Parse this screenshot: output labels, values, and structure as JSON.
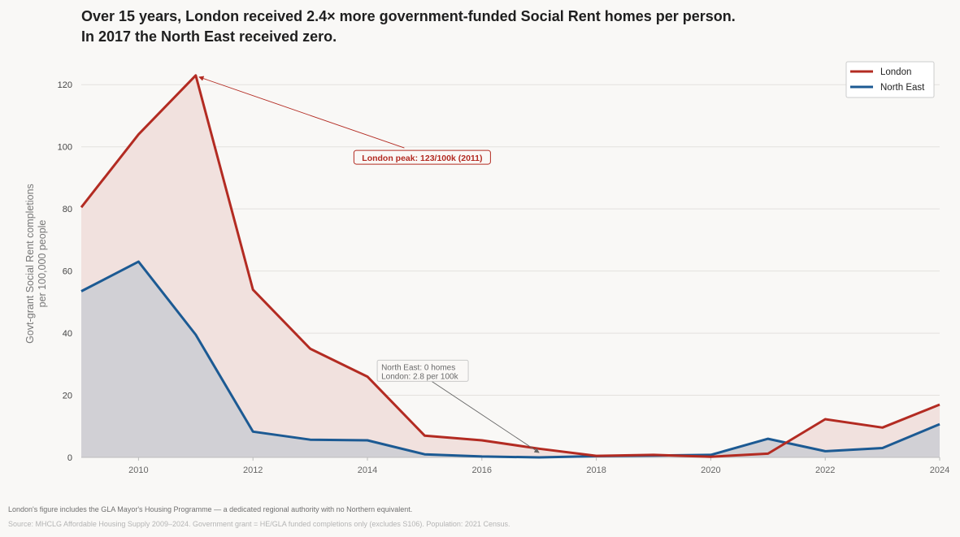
{
  "title": {
    "line1": "Over 15 years, London received 2.4× more government-funded Social Rent homes per person.",
    "line2": "In 2017 the North East received zero."
  },
  "footnote": "London's figure includes the GLA Mayor's Housing Programme — a dedicated regional authority with no Northern equivalent.",
  "source": "Source: MHCLG Affordable Housing Supply 2009–2024. Government grant = HE/GLA funded completions only (excludes S106). Population: 2021 Census.",
  "colors": {
    "london": "#b32b22",
    "north_east": "#1c5a93",
    "london_fill": "#f1e1de",
    "north_east_fill": "#cfcfd4",
    "grid": "#e3e1de",
    "axis_text": "#444444",
    "ylabel_text": "#777777"
  },
  "chart_data": {
    "type": "area",
    "title": "Over 15 years, London received 2.4× more government-funded Social Rent homes per person.",
    "ylabel": "Govt-grant Social Rent completions per 100,000 people",
    "ylabel_lines": [
      "Govt-grant Social Rent completions",
      "per 100,000 people"
    ],
    "xlabel": "",
    "xlim": [
      2009,
      2024
    ],
    "ylim": [
      0,
      130
    ],
    "x_ticks": [
      2010,
      2012,
      2014,
      2016,
      2018,
      2020,
      2022,
      2024
    ],
    "y_ticks": [
      0,
      20,
      40,
      60,
      80,
      100,
      120
    ],
    "grid": "horizontal",
    "legend_position": "top-right",
    "x": [
      2009,
      2010,
      2011,
      2012,
      2013,
      2014,
      2015,
      2016,
      2017,
      2018,
      2019,
      2020,
      2021,
      2022,
      2023,
      2024
    ],
    "series": [
      {
        "name": "London",
        "values": [
          80.5,
          104,
          123,
          54,
          35,
          26,
          7,
          5.5,
          2.8,
          0.5,
          0.8,
          0.2,
          1.2,
          12.3,
          9.6,
          17
        ]
      },
      {
        "name": "North East",
        "values": [
          53.5,
          63,
          39.5,
          8.3,
          5.7,
          5.5,
          1,
          0.3,
          0,
          0.4,
          0.6,
          0.8,
          6,
          2,
          3,
          10.7
        ]
      }
    ],
    "annotations": [
      {
        "text": "London peak: 123/100k (2011)",
        "x": 2011,
        "y": 123,
        "text_x": 2015.0,
        "text_y": 96.5,
        "color": "london"
      },
      {
        "lines": [
          "North East: 0 homes",
          "London: 2.8 per 100k"
        ],
        "x": 2017,
        "y": 1,
        "text_x": 2014.2,
        "text_y": 30.5,
        "color": "neutral"
      }
    ]
  }
}
